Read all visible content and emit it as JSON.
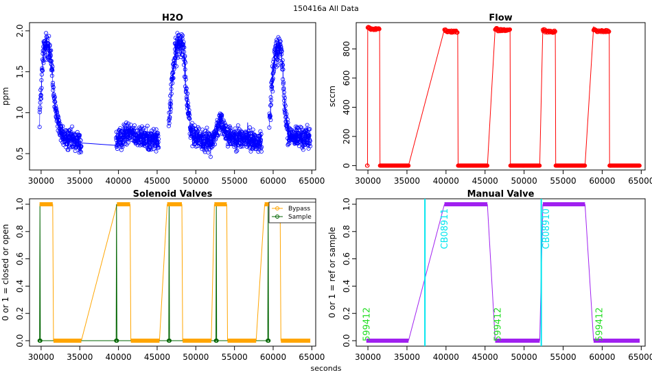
{
  "page": {
    "main_title": "150416a   All Data",
    "x_axis_label": "seconds"
  },
  "colors": {
    "h2o": "#0000ff",
    "flow": "#ff0000",
    "bypass": "#ffa500",
    "sample": "#006400",
    "manual": "#a020f0",
    "cylinder_label": "#00e5ee",
    "sample_label": "#22dd22"
  },
  "chart_data": [
    {
      "id": "h2o",
      "type": "scatter",
      "title": "H2O",
      "xlabel": "",
      "ylabel": "ppm",
      "xlim": [
        28500,
        65500
      ],
      "ylim": [
        0.3,
        2.1
      ],
      "xticks": [
        "30000",
        "35000",
        "40000",
        "45000",
        "50000",
        "55000",
        "60000",
        "65000"
      ],
      "yticks": [
        "0.5",
        "1.0",
        "1.5",
        "2.0"
      ],
      "segments": [
        {
          "x_start": 29800,
          "x_end": 35200,
          "profile": [
            [
              29800,
              0.95
            ],
            [
              30300,
              1.75
            ],
            [
              31100,
              1.85
            ],
            [
              31600,
              1.25
            ],
            [
              32200,
              0.85
            ],
            [
              33000,
              0.68
            ],
            [
              35200,
              0.63
            ]
          ]
        },
        {
          "x_start": 39700,
          "x_end": 45200,
          "profile": [
            [
              39700,
              0.64
            ],
            [
              40500,
              0.7
            ],
            [
              41500,
              0.8
            ],
            [
              42500,
              0.7
            ],
            [
              45200,
              0.66
            ]
          ]
        },
        {
          "x_start": 46500,
          "x_end": 58500,
          "profile": [
            [
              46500,
              0.8
            ],
            [
              47000,
              1.5
            ],
            [
              47600,
              1.82
            ],
            [
              48400,
              1.88
            ],
            [
              48800,
              1.25
            ],
            [
              49400,
              0.72
            ],
            [
              52000,
              0.63
            ],
            [
              53200,
              0.9
            ],
            [
              54200,
              0.72
            ],
            [
              58500,
              0.64
            ]
          ]
        },
        {
          "x_start": 59500,
          "x_end": 64800,
          "profile": [
            [
              59500,
              0.85
            ],
            [
              59900,
              1.4
            ],
            [
              60300,
              1.78
            ],
            [
              61000,
              1.82
            ],
            [
              61400,
              1.2
            ],
            [
              61900,
              0.72
            ],
            [
              64800,
              0.68
            ]
          ]
        }
      ],
      "bridges": [
        [
          [
            35200,
            0.63
          ],
          [
            39700,
            0.6
          ]
        ],
        [
          [
            56700,
            0.88
          ],
          [
            56700,
            0.72
          ]
        ]
      ]
    },
    {
      "id": "flow",
      "type": "line",
      "title": "Flow",
      "xlabel": "",
      "ylabel": "sccm",
      "xlim": [
        28500,
        65500
      ],
      "ylim": [
        -30,
        980
      ],
      "xticks": [
        "30000",
        "35000",
        "40000",
        "45000",
        "50000",
        "55000",
        "60000",
        "65000"
      ],
      "yticks": [
        "0",
        "200",
        "400",
        "600",
        "800"
      ],
      "points": [
        [
          29900,
          0
        ],
        [
          29950,
          0
        ],
        [
          29980,
          930
        ],
        [
          30300,
          940
        ],
        [
          31000,
          935
        ],
        [
          31500,
          925
        ],
        [
          31550,
          0
        ],
        [
          35200,
          0
        ],
        [
          39800,
          935
        ],
        [
          40100,
          915
        ],
        [
          41500,
          915
        ],
        [
          41550,
          0
        ],
        [
          45300,
          0
        ],
        [
          46300,
          945
        ],
        [
          46600,
          935
        ],
        [
          48200,
          920
        ],
        [
          48250,
          0
        ],
        [
          52000,
          0
        ],
        [
          52400,
          940
        ],
        [
          52700,
          915
        ],
        [
          54000,
          915
        ],
        [
          54050,
          0
        ],
        [
          57800,
          0
        ],
        [
          58900,
          950
        ],
        [
          59200,
          925
        ],
        [
          60900,
          915
        ],
        [
          60950,
          0
        ],
        [
          64800,
          0
        ]
      ],
      "high_plateaus": [
        [
          29980,
          31500,
          935
        ],
        [
          39800,
          41500,
          918
        ],
        [
          46300,
          48200,
          928
        ],
        [
          52400,
          54000,
          918
        ],
        [
          58900,
          60900,
          922
        ]
      ],
      "zero_runs": [
        [
          29900,
          29950
        ],
        [
          31550,
          35200
        ],
        [
          41550,
          45300
        ],
        [
          48250,
          52000
        ],
        [
          54050,
          57800
        ],
        [
          60950,
          64800
        ]
      ]
    },
    {
      "id": "solenoid",
      "type": "line",
      "title": "Solenoid Valves",
      "xlabel": "",
      "ylabel": "0 or 1 = closed or open",
      "xlim": [
        28500,
        65500
      ],
      "ylim": [
        -0.04,
        1.04
      ],
      "xticks": [
        "30000",
        "35000",
        "40000",
        "45000",
        "50000",
        "55000",
        "60000",
        "65000"
      ],
      "yticks": [
        "0.0",
        "0.2",
        "0.4",
        "0.6",
        "0.8",
        "1.0"
      ],
      "legend": [
        "Bypass",
        "Sample"
      ],
      "series": [
        {
          "name": "Bypass",
          "runs_one": [
            [
              29800,
              31500
            ],
            [
              39800,
              41500
            ],
            [
              46300,
              48200
            ],
            [
              52400,
              54000
            ],
            [
              58900,
              60900
            ]
          ],
          "runs_zero": [
            [
              31600,
              35200
            ],
            [
              41600,
              45300
            ],
            [
              48300,
              52000
            ],
            [
              54100,
              57800
            ],
            [
              61000,
              64800
            ]
          ],
          "transitions": [
            [
              29800,
              1,
              29800,
              1
            ],
            [
              31500,
              1,
              31600,
              0
            ],
            [
              35200,
              0,
              39800,
              1
            ],
            [
              41500,
              1,
              41600,
              0
            ],
            [
              45300,
              0,
              46300,
              1
            ],
            [
              48200,
              1,
              48300,
              0
            ],
            [
              52000,
              0,
              52400,
              1
            ],
            [
              54000,
              1,
              54100,
              0
            ],
            [
              57800,
              0,
              58900,
              1
            ],
            [
              60900,
              1,
              61000,
              0
            ]
          ]
        },
        {
          "name": "Sample",
          "points": [
            [
              29800,
              0
            ],
            [
              29850,
              1
            ],
            [
              29900,
              0
            ],
            [
              39700,
              0
            ],
            [
              39750,
              1
            ],
            [
              39800,
              0
            ],
            [
              46500,
              0
            ],
            [
              46550,
              1
            ],
            [
              46600,
              0
            ],
            [
              52600,
              0
            ],
            [
              52650,
              1
            ],
            [
              52700,
              0
            ],
            [
              59300,
              0
            ],
            [
              59350,
              1
            ],
            [
              59400,
              0
            ]
          ]
        }
      ]
    },
    {
      "id": "manual",
      "type": "line",
      "title": "Manual Valve",
      "xlabel": "",
      "ylabel": "0 or 1 = ref or sample",
      "xlim": [
        28500,
        65500
      ],
      "ylim": [
        -0.04,
        1.04
      ],
      "xticks": [
        "30000",
        "35000",
        "40000",
        "45000",
        "50000",
        "55000",
        "60000",
        "65000"
      ],
      "yticks": [
        "0.0",
        "0.2",
        "0.4",
        "0.6",
        "0.8",
        "1.0"
      ],
      "series": [
        {
          "name": "Manual",
          "points": [
            [
              29800,
              0
            ],
            [
              35200,
              0
            ],
            [
              39800,
              1
            ],
            [
              45300,
              1
            ],
            [
              46300,
              0
            ],
            [
              52000,
              0
            ],
            [
              52400,
              1
            ],
            [
              57800,
              1
            ],
            [
              58900,
              0
            ],
            [
              64800,
              0
            ]
          ]
        }
      ],
      "vlines": [
        37300,
        52200
      ],
      "annotations": [
        {
          "text": "599412",
          "x": 30200,
          "y": 0.12,
          "color": "sample_label"
        },
        {
          "text": "CB08911",
          "x": 40200,
          "y": 0.82,
          "color": "cylinder_label"
        },
        {
          "text": "599412",
          "x": 47000,
          "y": 0.12,
          "color": "sample_label"
        },
        {
          "text": "CB08910",
          "x": 53200,
          "y": 0.82,
          "color": "cylinder_label"
        },
        {
          "text": "599412",
          "x": 60000,
          "y": 0.12,
          "color": "sample_label"
        }
      ]
    }
  ]
}
